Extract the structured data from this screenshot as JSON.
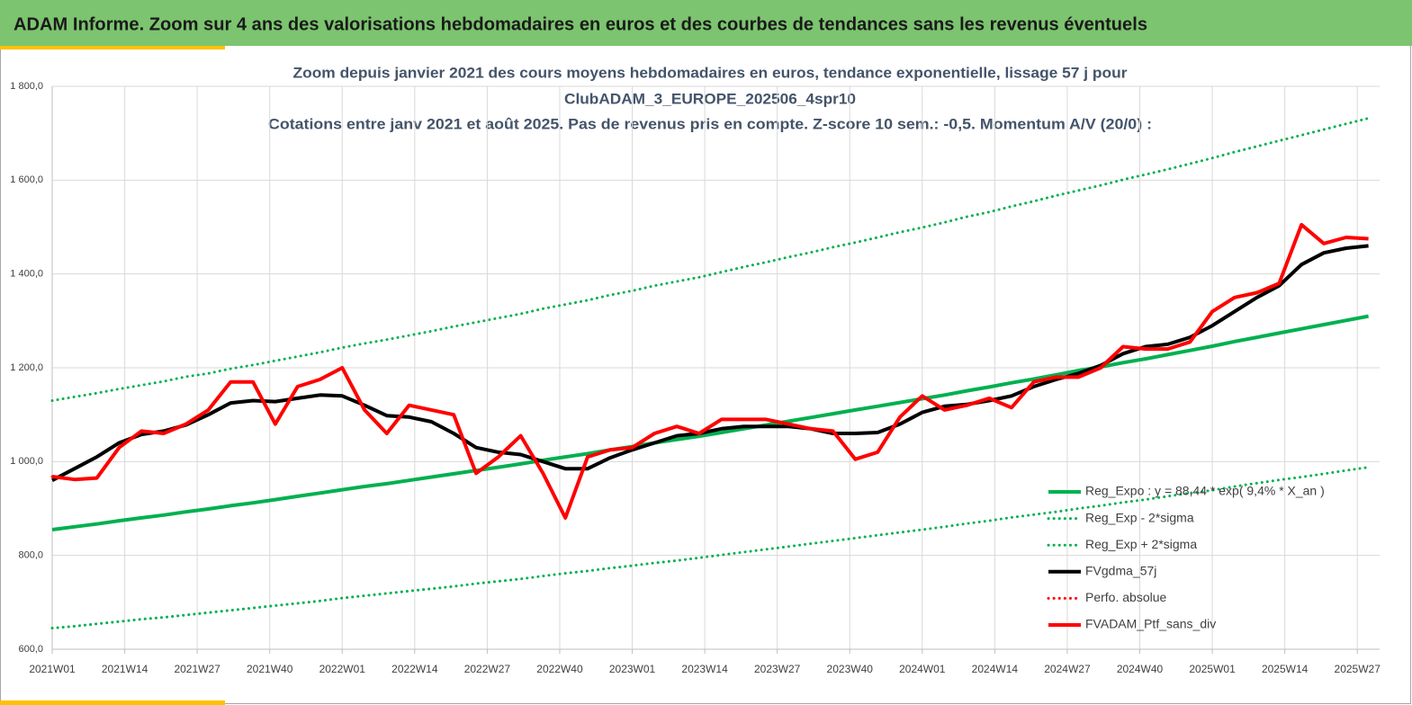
{
  "header": {
    "title": "ADAM Informe. Zoom sur 4 ans des valorisations hebdomadaires en euros et des courbes de tendances sans les revenus éventuels"
  },
  "chart_data": {
    "type": "line",
    "title": [
      "Zoom depuis janvier 2021 des cours moyens hebdomadaires  en euros, tendance exponentielle, lissage 57 j pour",
      "ClubADAM_3_EUROPE_202506_4spr10",
      "Cotations  entre janv 2021 et août 2025. Pas de revenus pris  en compte.  Z-score 10 sem.: -0,5. Momentum A/V (20/0) :"
    ],
    "x": [
      0,
      4,
      8,
      12,
      16,
      20,
      24,
      28,
      32,
      36,
      40,
      44,
      48,
      52,
      56,
      60,
      64,
      68,
      72,
      76,
      80,
      84,
      88,
      92,
      96,
      100,
      104,
      108,
      112,
      116,
      120,
      124,
      128,
      132,
      136,
      140,
      144,
      148,
      152,
      156,
      160,
      164,
      168,
      172,
      176,
      180,
      184,
      188,
      192,
      196,
      200,
      204,
      208,
      212,
      216,
      220,
      224,
      228,
      232,
      236
    ],
    "xlim": [
      0,
      238
    ],
    "xticks": [
      {
        "value": 0,
        "label": "2021W01"
      },
      {
        "value": 13,
        "label": "2021W14"
      },
      {
        "value": 26,
        "label": "2021W27"
      },
      {
        "value": 39,
        "label": "2021W40"
      },
      {
        "value": 52,
        "label": "2022W01"
      },
      {
        "value": 65,
        "label": "2022W14"
      },
      {
        "value": 78,
        "label": "2022W27"
      },
      {
        "value": 91,
        "label": "2022W40"
      },
      {
        "value": 104,
        "label": "2023W01"
      },
      {
        "value": 117,
        "label": "2023W14"
      },
      {
        "value": 130,
        "label": "2023W27"
      },
      {
        "value": 143,
        "label": "2023W40"
      },
      {
        "value": 156,
        "label": "2024W01"
      },
      {
        "value": 169,
        "label": "2024W14"
      },
      {
        "value": 182,
        "label": "2024W27"
      },
      {
        "value": 195,
        "label": "2024W40"
      },
      {
        "value": 208,
        "label": "2025W01"
      },
      {
        "value": 221,
        "label": "2025W14"
      },
      {
        "value": 234,
        "label": "2025W27"
      }
    ],
    "ylim": [
      600,
      1800
    ],
    "yticks": [
      {
        "value": 600,
        "label": "600,0"
      },
      {
        "value": 800,
        "label": "800,0"
      },
      {
        "value": 1000,
        "label": "1 000,0"
      },
      {
        "value": 1200,
        "label": "1 200,0"
      },
      {
        "value": 1400,
        "label": "1 400,0"
      },
      {
        "value": 1600,
        "label": "1 600,0"
      },
      {
        "value": 1800,
        "label": "1 800,0"
      }
    ],
    "grid": true,
    "legend": "lower right",
    "series": [
      {
        "name": "Reg_Expo : y = 88,44 * exp( 9,4% *  X_an )",
        "color": "#00b050",
        "dotted": false,
        "values": [
          855,
          861,
          867,
          874,
          880,
          886,
          893,
          899,
          906,
          912,
          919,
          926,
          933,
          940,
          947,
          953,
          960,
          967,
          974,
          981,
          988,
          995,
          1003,
          1010,
          1017,
          1025,
          1032,
          1040,
          1047,
          1054,
          1062,
          1070,
          1078,
          1086,
          1094,
          1102,
          1110,
          1118,
          1126,
          1134,
          1142,
          1151,
          1159,
          1168,
          1176,
          1185,
          1194,
          1202,
          1211,
          1219,
          1228,
          1237,
          1246,
          1256,
          1265,
          1274,
          1283,
          1292,
          1301,
          1310
        ]
      },
      {
        "name": "Reg_Exp - 2*sigma",
        "color": "#00b050",
        "dotted": true,
        "values": [
          645,
          649,
          654,
          659,
          664,
          668,
          673,
          678,
          683,
          688,
          693,
          698,
          703,
          709,
          714,
          719,
          724,
          729,
          734,
          740,
          745,
          750,
          756,
          762,
          767,
          773,
          778,
          784,
          789,
          795,
          801,
          807,
          813,
          819,
          825,
          831,
          837,
          843,
          849,
          855,
          861,
          868,
          874,
          881,
          887,
          893,
          900,
          906,
          913,
          919,
          926,
          933,
          939,
          947,
          954,
          961,
          967,
          974,
          981,
          988
        ]
      },
      {
        "name": "Reg_Exp + 2*sigma",
        "color": "#00b050",
        "dotted": true,
        "values": [
          1130,
          1138,
          1146,
          1155,
          1163,
          1171,
          1181,
          1188,
          1198,
          1206,
          1215,
          1224,
          1233,
          1243,
          1252,
          1260,
          1269,
          1278,
          1288,
          1297,
          1306,
          1315,
          1326,
          1335,
          1344,
          1355,
          1364,
          1375,
          1384,
          1393,
          1404,
          1415,
          1425,
          1436,
          1446,
          1457,
          1467,
          1478,
          1489,
          1499,
          1510,
          1522,
          1532,
          1544,
          1555,
          1567,
          1578,
          1589,
          1601,
          1612,
          1623,
          1635,
          1647,
          1660,
          1672,
          1684,
          1696,
          1708,
          1720,
          1732
        ]
      },
      {
        "name": "FVgdma_57j",
        "color": "#000000",
        "dotted": false,
        "values": [
          960,
          985,
          1010,
          1040,
          1058,
          1065,
          1078,
          1100,
          1125,
          1130,
          1128,
          1135,
          1142,
          1140,
          1120,
          1098,
          1095,
          1085,
          1060,
          1030,
          1020,
          1015,
          1000,
          985,
          985,
          1008,
          1025,
          1040,
          1055,
          1060,
          1070,
          1075,
          1075,
          1075,
          1070,
          1060,
          1060,
          1062,
          1080,
          1105,
          1118,
          1122,
          1130,
          1140,
          1160,
          1175,
          1188,
          1205,
          1230,
          1245,
          1250,
          1265,
          1290,
          1320,
          1350,
          1375,
          1420,
          1445,
          1455,
          1460
        ]
      },
      {
        "name": "Perfo. absolue",
        "color": "#ff0000",
        "dotted": true,
        "values": [
          968,
          962,
          965,
          1030,
          1065,
          1060,
          1080,
          1110,
          1170,
          1170,
          1080,
          1160,
          1175,
          1200,
          1110,
          1060,
          1120,
          1110,
          1100,
          975,
          1010,
          1055,
          975,
          880,
          1010,
          1025,
          1030,
          1060,
          1075,
          1060,
          1090,
          1090,
          1090,
          1080,
          1070,
          1065,
          1005,
          1020,
          1095,
          1140,
          1110,
          1120,
          1135,
          1115,
          1170,
          1180,
          1180,
          1200,
          1245,
          1240,
          1240,
          1255,
          1320,
          1350,
          1360,
          1380,
          1505,
          1465,
          1478,
          1475
        ]
      },
      {
        "name": "FVADAM_Ptf_sans_div",
        "color": "#ff0000",
        "dotted": false,
        "values": [
          968,
          962,
          965,
          1030,
          1065,
          1060,
          1080,
          1110,
          1170,
          1170,
          1080,
          1160,
          1175,
          1200,
          1110,
          1060,
          1120,
          1110,
          1100,
          975,
          1010,
          1055,
          975,
          880,
          1010,
          1025,
          1030,
          1060,
          1075,
          1060,
          1090,
          1090,
          1090,
          1080,
          1070,
          1065,
          1005,
          1020,
          1095,
          1140,
          1110,
          1120,
          1135,
          1115,
          1170,
          1180,
          1180,
          1200,
          1245,
          1240,
          1240,
          1255,
          1320,
          1350,
          1360,
          1380,
          1505,
          1465,
          1478,
          1475
        ]
      }
    ]
  }
}
